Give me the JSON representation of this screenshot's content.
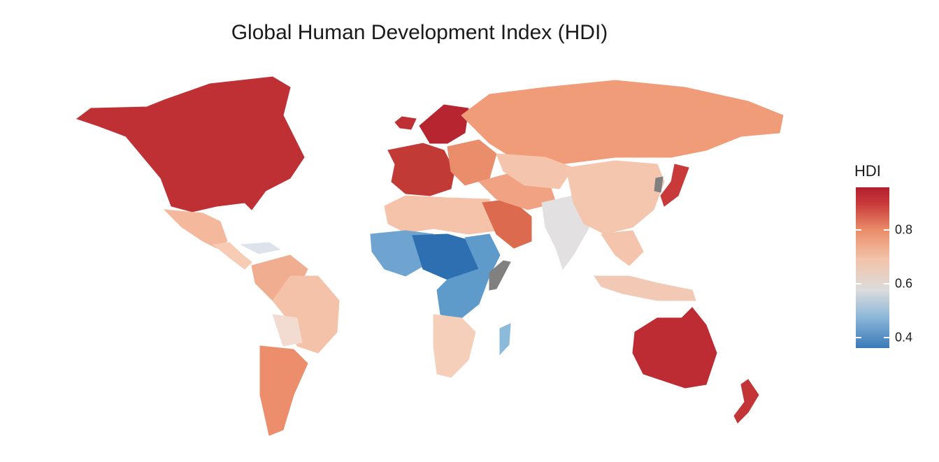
{
  "title": "Global Human Development Index (HDI)",
  "legend": {
    "title": "HDI",
    "ticks": [
      {
        "label": "0.8",
        "value": 0.8
      },
      {
        "label": "0.6",
        "value": 0.6
      },
      {
        "label": "0.4",
        "value": 0.4
      }
    ],
    "range": [
      0.36,
      0.96
    ],
    "colors": {
      "low": "#2166ac",
      "mid": "#dcdcdc",
      "high": "#b2182b",
      "missing": "#808080"
    }
  },
  "regions": [
    {
      "name": "North America",
      "color": "#bf3034"
    },
    {
      "name": "Mexico",
      "color": "#f4b99c"
    },
    {
      "name": "Central America",
      "color": "#f7cbb4"
    },
    {
      "name": "Caribbean",
      "color": "#dde3ea"
    },
    {
      "name": "Northern South America",
      "color": "#f1ad8f"
    },
    {
      "name": "Brazil",
      "color": "#f4c2a8"
    },
    {
      "name": "Bolivia",
      "color": "#f2dcd1"
    },
    {
      "name": "Southern Cone",
      "color": "#ec8e6c"
    },
    {
      "name": "Western Europe",
      "color": "#c13a36"
    },
    {
      "name": "Scandinavia",
      "color": "#b72531"
    },
    {
      "name": "Eastern Europe",
      "color": "#ea8d6b"
    },
    {
      "name": "Russia",
      "color": "#f09c79"
    },
    {
      "name": "Greenland",
      "color": "#bf3034"
    },
    {
      "name": "North Africa",
      "color": "#f4c3a9"
    },
    {
      "name": "West Africa",
      "color": "#6ea4cf"
    },
    {
      "name": "Central Africa",
      "color": "#2d6fb0"
    },
    {
      "name": "East Africa",
      "color": "#5f9bca"
    },
    {
      "name": "Southern Africa",
      "color": "#f6cfbb"
    },
    {
      "name": "Madagascar",
      "color": "#8cbada"
    },
    {
      "name": "Arabian Peninsula",
      "color": "#dc6a4f"
    },
    {
      "name": "Middle East",
      "color": "#f0a283"
    },
    {
      "name": "Central Asia",
      "color": "#f4c5ac"
    },
    {
      "name": "South Asia",
      "color": "#e2e0e0"
    },
    {
      "name": "China",
      "color": "#f5c6ae"
    },
    {
      "name": "Southeast Asia",
      "color": "#f4c5ac"
    },
    {
      "name": "Japan",
      "color": "#c8393a"
    },
    {
      "name": "Indonesia",
      "color": "#f2c9b4"
    },
    {
      "name": "Australia",
      "color": "#bd2b33"
    },
    {
      "name": "New Zealand",
      "color": "#c33436"
    },
    {
      "name": "Korea",
      "color": "#808080"
    },
    {
      "name": "Somalia",
      "color": "#808080"
    }
  ]
}
